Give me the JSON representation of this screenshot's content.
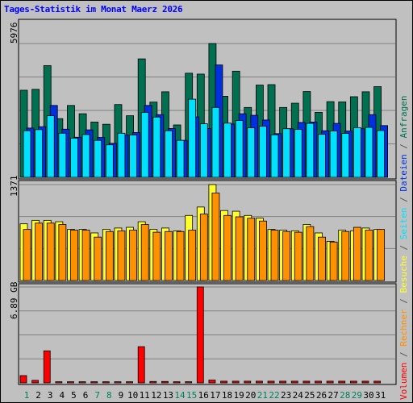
{
  "chart_data": {
    "type": "bar",
    "title": "Tages-Statistik im Monat Maerz 2026",
    "days": [
      "1",
      "2",
      "3",
      "4",
      "5",
      "6",
      "7",
      "8",
      "9",
      "10",
      "11",
      "12",
      "13",
      "14",
      "15",
      "16",
      "17",
      "18",
      "19",
      "20",
      "21",
      "22",
      "23",
      "24",
      "25",
      "26",
      "27",
      "28",
      "29",
      "30",
      "31"
    ],
    "weekend_days": [
      "1",
      "7",
      "8",
      "14",
      "15",
      "21",
      "22",
      "28",
      "29"
    ],
    "colors": {
      "anfragen": "#007050",
      "dateien": "#0030e0",
      "seiten": "#00e0ff",
      "besuche": "#ffff30",
      "rechner": "#ff9000",
      "volumen": "#ff0000",
      "weekend_label": "#00805c",
      "weekday_label": "#000000"
    },
    "panels": [
      {
        "id": "hits",
        "ymax_label": "5976",
        "ymax": 5976,
        "series": [
          {
            "name": "Anfragen",
            "color": "#007050",
            "values": [
              3890,
              3930,
              4990,
              2620,
              3210,
              2840,
              2470,
              2370,
              3250,
              2750,
              5290,
              3360,
              3820,
              2340,
              4650,
              4610,
              5976,
              3620,
              4740,
              3120,
              4120,
              4140,
              3120,
              3310,
              3830,
              2900,
              3380,
              3370,
              3600,
              3820,
              4050
            ]
          },
          {
            "name": "Dateien",
            "color": "#0030e0",
            "values": [
              2200,
              2260,
              3210,
              2150,
              1790,
              2120,
              1780,
              1520,
              1890,
              2000,
              3210,
              2800,
              2180,
              1650,
              2700,
              2180,
              5020,
              2380,
              2840,
              2770,
              2560,
              1950,
              2170,
              2450,
              2470,
              2080,
              2410,
              2070,
              2170,
              2800,
              2310
            ]
          },
          {
            "name": "Seiten",
            "color": "#00e0ff",
            "values": [
              2080,
              2130,
              2750,
              1970,
              1750,
              1910,
              1650,
              1450,
              1970,
              1890,
              2900,
              2690,
              2080,
              1650,
              3490,
              2390,
              3120,
              2420,
              2540,
              2210,
              2280,
              1900,
              2170,
              2140,
              2410,
              1920,
              2070,
              1960,
              2220,
              2230,
              2090
            ]
          }
        ]
      },
      {
        "id": "visits",
        "ymax_label": "1371",
        "ymax": 1371,
        "series": [
          {
            "name": "Besuche",
            "color": "#ffff30",
            "values": [
              810,
              860,
              860,
              840,
              730,
              730,
              680,
              730,
              750,
              760,
              840,
              730,
              750,
              710,
              930,
              1050,
              1371,
              1000,
              990,
              930,
              890,
              730,
              720,
              710,
              800,
              680,
              560,
              720,
              710,
              750,
              730
            ]
          },
          {
            "name": "Rechner",
            "color": "#ff9000",
            "values": [
              730,
              820,
              820,
              800,
              720,
              720,
              620,
              700,
              710,
              720,
              800,
              690,
              700,
              700,
              720,
              950,
              1250,
              930,
              910,
              890,
              850,
              720,
              700,
              690,
              770,
              620,
              550,
              700,
              760,
              720,
              730
            ]
          }
        ]
      },
      {
        "id": "volume",
        "ymax_label": "6.89 GB",
        "ymax": 6.89,
        "series": [
          {
            "name": "Volumen",
            "color": "#ff0000",
            "values": [
              0.52,
              0.18,
              2.3,
              0.08,
              0.08,
              0.08,
              0.08,
              0.08,
              0.08,
              0.08,
              2.6,
              0.1,
              0.1,
              0.08,
              0.08,
              6.89,
              0.2,
              0.12,
              0.12,
              0.12,
              0.12,
              0.12,
              0.12,
              0.12,
              0.12,
              0.12,
              0.12,
              0.12,
              0.12,
              0.12,
              0.12
            ]
          }
        ]
      }
    ],
    "legend": [
      "Volumen",
      "Rechner",
      "Besuche",
      "Seiten",
      "Dateien",
      "Anfragen"
    ],
    "legend_separator": " / "
  }
}
